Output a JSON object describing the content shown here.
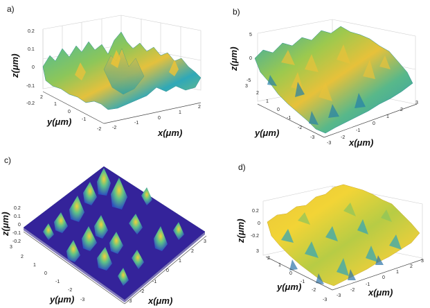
{
  "figure": {
    "panels": [
      {
        "id": "a",
        "label": "a)",
        "xlabel": "x(μm)",
        "ylabel": "y(μm)",
        "zlabel": "z(μm)",
        "x_ticks": [
          "-2",
          "-1",
          "0",
          "1",
          "2"
        ],
        "y_ticks": [
          "2",
          "1",
          "0",
          "-1",
          "-2"
        ],
        "z_ticks": [
          "0.2",
          "0.1",
          "0",
          "-0.1",
          "-0.2"
        ],
        "colormap": "parula (teal-green-yellow)"
      },
      {
        "id": "b",
        "label": "b)",
        "xlabel": "x(μm)",
        "ylabel": "y(μm)",
        "zlabel": "z(μm)",
        "x_ticks": [
          "-3",
          "-2",
          "-1",
          "0",
          "1",
          "2",
          "3"
        ],
        "y_ticks": [
          "3",
          "2",
          "1",
          "0",
          "-1",
          "-2",
          "-3"
        ],
        "z_ticks": [
          "5",
          "0",
          "-5"
        ],
        "colormap": "parula (teal-green-yellow)"
      },
      {
        "id": "c",
        "label": "c)",
        "xlabel": "x(μm)",
        "ylabel": "y(μm)",
        "zlabel": "z(μm)",
        "x_ticks": [
          "-3",
          "-2",
          "-1",
          "0",
          "1",
          "2",
          "3"
        ],
        "y_ticks": [
          "3",
          "2",
          "1",
          "0",
          "-1",
          "-2",
          "-3"
        ],
        "z_ticks": [
          "0.2",
          "0.1",
          "0",
          "-0.1",
          "-0.2"
        ],
        "colormap": "parula (dark blue base with yellow peaks)"
      },
      {
        "id": "d",
        "label": "d)",
        "xlabel": "x(μm)",
        "ylabel": "y(μm)",
        "zlabel": "z(μm)",
        "x_ticks": [
          "-3",
          "-2",
          "-1",
          "0",
          "1",
          "2",
          "3"
        ],
        "y_ticks": [
          "3",
          "2",
          "1",
          "0",
          "-1",
          "-2",
          "-3"
        ],
        "z_ticks": [
          "0.2",
          "0",
          "-0.2"
        ],
        "colormap": "parula (yellow dominant)"
      }
    ]
  }
}
